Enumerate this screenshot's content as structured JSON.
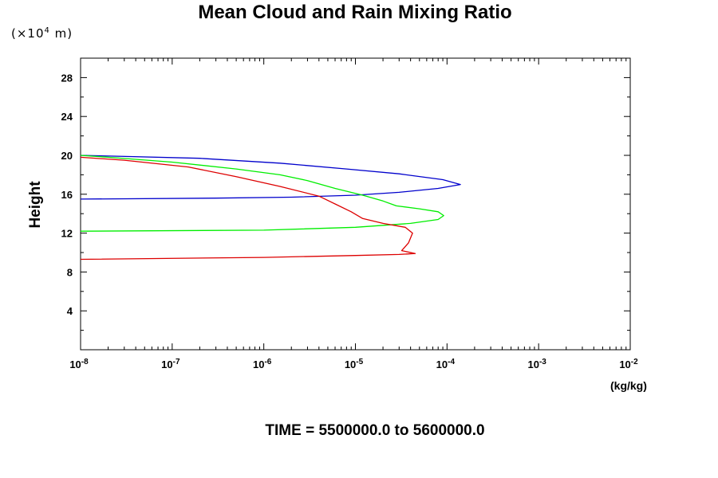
{
  "chart_data": {
    "type": "line",
    "title": "Mean Cloud and Rain Mixing Ratio",
    "ylabel": "Height",
    "yunit_prefix": "(×10",
    "yunit_exp": "4",
    "yunit_suffix": " m)",
    "xlabel": "(kg/kg)",
    "footer": "TIME = 5500000.0 to 5600000.0",
    "xscale": "log",
    "xlim": [
      1e-08,
      0.01
    ],
    "ylim": [
      0,
      30
    ],
    "xticks": [
      {
        "base": "10",
        "exp": "-8",
        "value": 1e-08
      },
      {
        "base": "10",
        "exp": "-7",
        "value": 1e-07
      },
      {
        "base": "10",
        "exp": "-6",
        "value": 1e-06
      },
      {
        "base": "10",
        "exp": "-5",
        "value": 1e-05
      },
      {
        "base": "10",
        "exp": "-4",
        "value": 0.0001
      },
      {
        "base": "10",
        "exp": "-3",
        "value": 0.001
      },
      {
        "base": "10",
        "exp": "-2",
        "value": 0.01
      }
    ],
    "yticks": [
      "4",
      "8",
      "12",
      "16",
      "20",
      "24",
      "28"
    ],
    "grid": false,
    "series": [
      {
        "color": "#0000cc",
        "points": [
          [
            1e-08,
            15.5
          ],
          [
            3e-07,
            15.6
          ],
          [
            2e-06,
            15.7
          ],
          [
            1e-05,
            15.9
          ],
          [
            3e-05,
            16.2
          ],
          [
            8e-05,
            16.6
          ],
          [
            0.00014,
            17.0
          ],
          [
            9e-05,
            17.5
          ],
          [
            3e-05,
            18.1
          ],
          [
            8e-06,
            18.6
          ],
          [
            1.5e-06,
            19.2
          ],
          [
            2e-07,
            19.7
          ],
          [
            1e-08,
            20.0
          ]
        ]
      },
      {
        "color": "#00ee00",
        "points": [
          [
            1e-08,
            12.2
          ],
          [
            1e-06,
            12.3
          ],
          [
            1e-05,
            12.6
          ],
          [
            4e-05,
            13.0
          ],
          [
            8e-05,
            13.4
          ],
          [
            9.2e-05,
            13.8
          ],
          [
            8e-05,
            14.2
          ],
          [
            5e-05,
            14.5
          ],
          [
            2.8e-05,
            14.8
          ],
          [
            2e-05,
            15.3
          ],
          [
            1.2e-05,
            15.9
          ],
          [
            6e-06,
            16.6
          ],
          [
            3e-06,
            17.4
          ],
          [
            1.5e-06,
            18.0
          ],
          [
            5e-07,
            18.6
          ],
          [
            1e-07,
            19.3
          ],
          [
            2e-08,
            19.8
          ],
          [
            1e-08,
            20.0
          ]
        ]
      },
      {
        "color": "#dd0000",
        "points": [
          [
            1e-08,
            9.3
          ],
          [
            1e-06,
            9.5
          ],
          [
            1e-05,
            9.7
          ],
          [
            3e-05,
            9.8
          ],
          [
            4.5e-05,
            9.9
          ],
          [
            3.2e-05,
            10.2
          ],
          [
            3.8e-05,
            11.0
          ],
          [
            4.2e-05,
            12.0
          ],
          [
            3.5e-05,
            12.6
          ],
          [
            2e-05,
            13.0
          ],
          [
            1.2e-05,
            13.5
          ],
          [
            9e-06,
            14.2
          ],
          [
            6e-06,
            15.0
          ],
          [
            4e-06,
            15.8
          ],
          [
            1.5e-06,
            16.8
          ],
          [
            5e-07,
            17.8
          ],
          [
            1.5e-07,
            18.8
          ],
          [
            3e-08,
            19.5
          ],
          [
            1e-08,
            19.8
          ]
        ]
      }
    ]
  }
}
